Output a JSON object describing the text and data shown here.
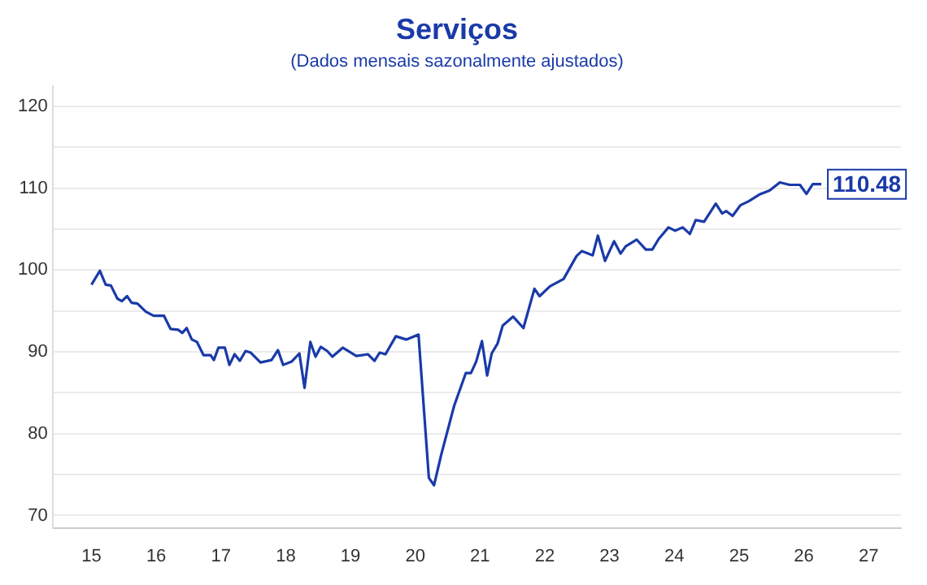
{
  "chart_data": {
    "type": "line",
    "title": "Serviços",
    "subtitle": "(Dados mensais sazonalmente ajustados)",
    "xlim": [
      14.4,
      27.5
    ],
    "xticks": [
      15,
      16,
      17,
      18,
      19,
      20,
      21,
      22,
      23,
      24,
      25,
      26,
      27
    ],
    "ylim": [
      68.5,
      122.5
    ],
    "yticks": [
      70,
      {
        "value": 75,
        "label": null
      },
      80,
      {
        "value": 85,
        "label": null
      },
      90,
      {
        "value": 95,
        "label": null
      },
      100,
      {
        "value": 105,
        "label": null
      },
      110,
      {
        "value": 115,
        "label": null
      },
      120
    ],
    "grid": "y",
    "legend": false,
    "marker": "none",
    "line_style": "solid",
    "annotations": [
      {
        "text": "110.48",
        "x": 26.27,
        "y": 110.48
      }
    ],
    "series": [
      {
        "color": "#1a3aa8",
        "x": [
          15.0,
          15.13,
          15.22,
          15.3,
          15.4,
          15.47,
          15.55,
          15.62,
          15.71,
          15.84,
          15.96,
          16.12,
          16.22,
          16.34,
          16.4,
          16.47,
          16.55,
          16.63,
          16.73,
          16.84,
          16.89,
          16.96,
          17.06,
          17.13,
          17.21,
          17.29,
          17.38,
          17.46,
          17.61,
          17.78,
          17.88,
          17.96,
          18.09,
          18.21,
          18.29,
          18.38,
          18.46,
          18.54,
          18.64,
          18.72,
          18.88,
          19.09,
          19.27,
          19.37,
          19.45,
          19.54,
          19.7,
          19.86,
          20.05,
          20.21,
          20.29,
          20.4,
          20.6,
          20.78,
          20.86,
          20.94,
          21.03,
          21.11,
          21.18,
          21.27,
          21.35,
          21.51,
          21.67,
          21.84,
          21.92,
          22.08,
          22.29,
          22.49,
          22.57,
          22.74,
          22.82,
          22.93,
          23.07,
          23.17,
          23.25,
          23.42,
          23.56,
          23.66,
          23.76,
          23.91,
          24.01,
          24.13,
          24.24,
          24.33,
          24.46,
          24.64,
          24.74,
          24.8,
          24.9,
          25.02,
          25.15,
          25.31,
          25.47,
          25.63,
          25.78,
          25.94,
          26.04,
          26.14,
          26.27
        ],
        "values": [
          98.2,
          99.9,
          98.2,
          98.1,
          96.5,
          96.2,
          96.8,
          96.0,
          95.9,
          94.9,
          94.4,
          94.4,
          92.8,
          92.7,
          92.3,
          92.9,
          91.5,
          91.2,
          89.6,
          89.6,
          89.0,
          90.5,
          90.5,
          88.4,
          89.7,
          88.9,
          90.1,
          89.9,
          88.7,
          89.0,
          90.2,
          88.4,
          88.8,
          89.8,
          85.6,
          91.2,
          89.4,
          90.6,
          90.1,
          89.4,
          90.5,
          89.5,
          89.7,
          88.9,
          89.9,
          89.7,
          91.9,
          91.5,
          92.1,
          74.6,
          73.7,
          77.4,
          83.4,
          87.4,
          87.4,
          88.8,
          91.3,
          87.1,
          89.8,
          91.0,
          93.2,
          94.3,
          92.9,
          97.7,
          96.8,
          98.0,
          98.9,
          101.7,
          102.3,
          101.8,
          104.2,
          101.1,
          103.5,
          102.0,
          102.9,
          103.7,
          102.5,
          102.5,
          103.8,
          105.2,
          104.8,
          105.2,
          104.4,
          106.1,
          105.9,
          108.1,
          106.9,
          107.2,
          106.6,
          107.9,
          108.4,
          109.2,
          109.7,
          110.7,
          110.4,
          110.4,
          109.3,
          110.5,
          110.48
        ]
      }
    ]
  }
}
